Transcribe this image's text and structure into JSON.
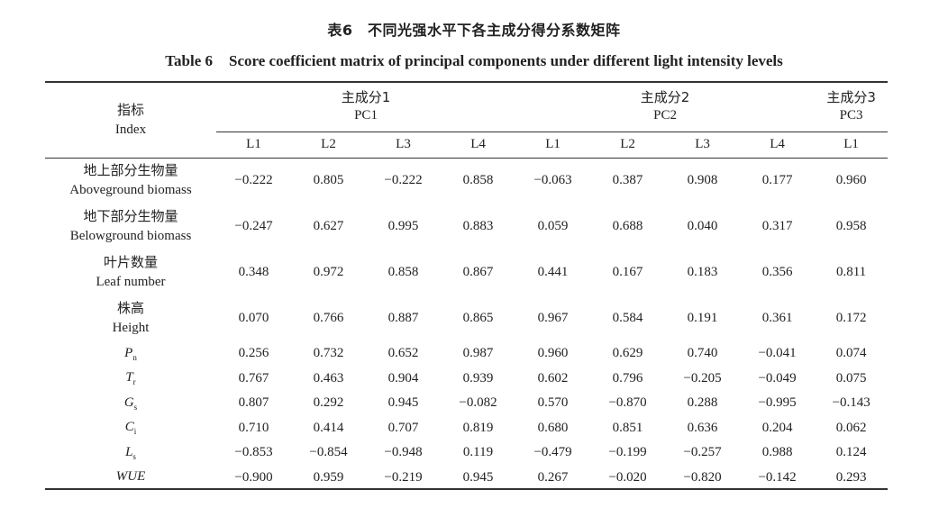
{
  "table": {
    "title_cn": "表6　不同光强水平下各主成分得分系数矩阵",
    "title_en_label": "Table 6",
    "title_en": "Score coefficient matrix of principal components under different light intensity levels",
    "index_header_cn": "指标",
    "index_header_en": "Index",
    "groups": [
      {
        "cn": "主成分1",
        "en": "PC1"
      },
      {
        "cn": "主成分2",
        "en": "PC2"
      },
      {
        "cn": "主成分3",
        "en": "PC3"
      }
    ],
    "levels": [
      "L1",
      "L2",
      "L3",
      "L4",
      "L1",
      "L2",
      "L3",
      "L4",
      "L1"
    ],
    "rows": [
      {
        "cn": "地上部分生物量",
        "en": "Aboveground biomass",
        "values": [
          "−0.222",
          "0.805",
          "−0.222",
          "0.858",
          "−0.063",
          "0.387",
          "0.908",
          "0.177",
          "0.960"
        ]
      },
      {
        "cn": "地下部分生物量",
        "en": "Belowground biomass",
        "values": [
          "−0.247",
          "0.627",
          "0.995",
          "0.883",
          "0.059",
          "0.688",
          "0.040",
          "0.317",
          "0.958"
        ]
      },
      {
        "cn": "叶片数量",
        "en": "Leaf number",
        "values": [
          "0.348",
          "0.972",
          "0.858",
          "0.867",
          "0.441",
          "0.167",
          "0.183",
          "0.356",
          "0.811"
        ]
      },
      {
        "cn": "株高",
        "en": "Height",
        "values": [
          "0.070",
          "0.766",
          "0.887",
          "0.865",
          "0.967",
          "0.584",
          "0.191",
          "0.361",
          "0.172"
        ]
      },
      {
        "sym": "P",
        "sub": "n",
        "values": [
          "0.256",
          "0.732",
          "0.652",
          "0.987",
          "0.960",
          "0.629",
          "0.740",
          "−0.041",
          "0.074"
        ]
      },
      {
        "sym": "T",
        "sub": "r",
        "values": [
          "0.767",
          "0.463",
          "0.904",
          "0.939",
          "0.602",
          "0.796",
          "−0.205",
          "−0.049",
          "0.075"
        ]
      },
      {
        "sym": "G",
        "sub": "s",
        "values": [
          "0.807",
          "0.292",
          "0.945",
          "−0.082",
          "0.570",
          "−0.870",
          "0.288",
          "−0.995",
          "−0.143"
        ]
      },
      {
        "sym": "C",
        "sub": "i",
        "values": [
          "0.710",
          "0.414",
          "0.707",
          "0.819",
          "0.680",
          "0.851",
          "0.636",
          "0.204",
          "0.062"
        ]
      },
      {
        "sym": "L",
        "sub": "s",
        "values": [
          "−0.853",
          "−0.854",
          "−0.948",
          "0.119",
          "−0.479",
          "−0.199",
          "−0.257",
          "0.988",
          "0.124"
        ]
      },
      {
        "sym": "WUE",
        "sub": "",
        "values": [
          "−0.900",
          "0.959",
          "−0.219",
          "0.945",
          "0.267",
          "−0.020",
          "−0.820",
          "−0.142",
          "0.293"
        ]
      }
    ]
  }
}
